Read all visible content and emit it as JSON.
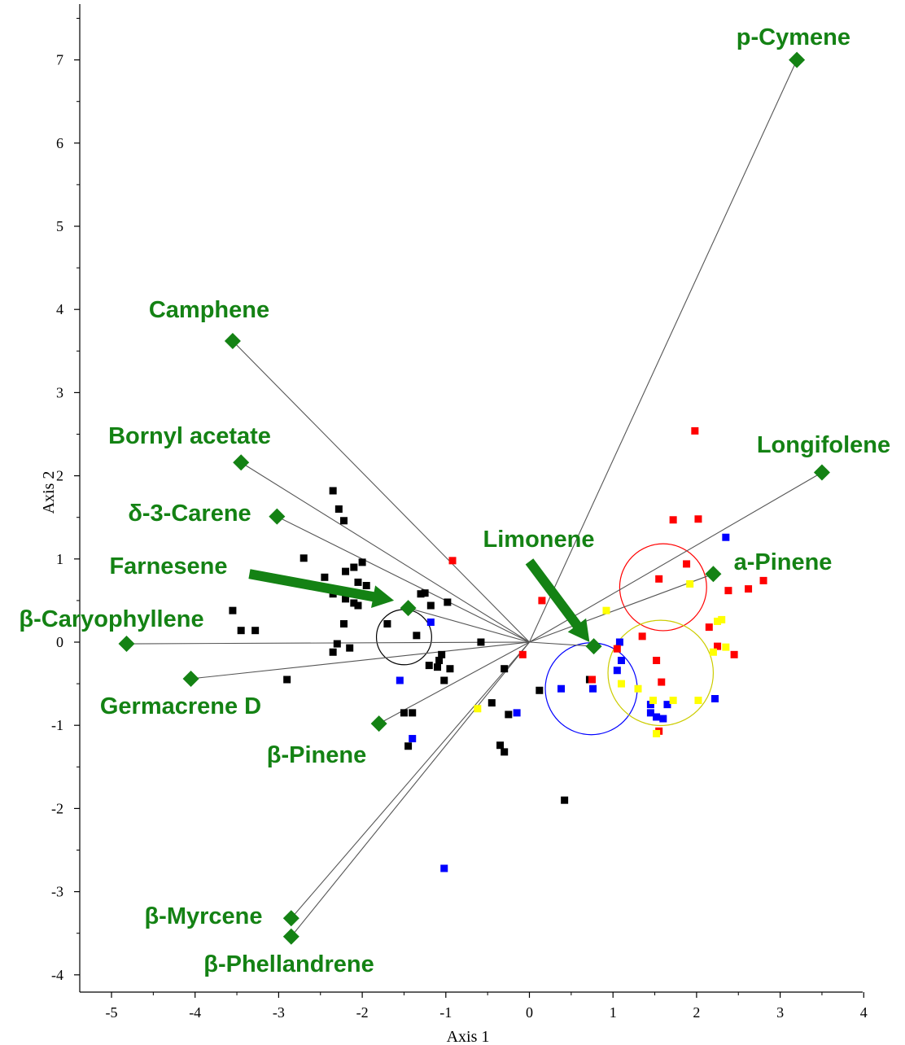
{
  "chart_data": {
    "type": "scatter",
    "title": "",
    "xlabel": "Axis 1",
    "ylabel": "Axis 2",
    "xlim": [
      -5.4,
      4.1
    ],
    "ylim": [
      -4.2,
      7.6
    ],
    "x_ticks": [
      -5,
      -4,
      -3,
      -2,
      -1,
      0,
      1,
      2,
      3,
      4
    ],
    "y_ticks": [
      -4,
      -3,
      -2,
      -1,
      0,
      1,
      2,
      3,
      4,
      5,
      6,
      7
    ],
    "grid": false,
    "colors": {
      "variables": "#148214",
      "black": "#000000",
      "blue": "#0000ff",
      "red": "#ff0000",
      "yellow": "#ffff00",
      "vector_line": "#555555"
    },
    "variables": [
      {
        "label": "p-Cymene",
        "x": 3.2,
        "y": 7.0
      },
      {
        "label": "Camphene",
        "x": -3.55,
        "y": 3.62
      },
      {
        "label": "Bornyl acetate",
        "x": -3.45,
        "y": 2.16
      },
      {
        "label": "Longifolene",
        "x": 3.5,
        "y": 2.04
      },
      {
        "label": "δ-3-Carene",
        "x": -3.02,
        "y": 1.51
      },
      {
        "label": "a-Pinene",
        "x": 2.2,
        "y": 0.82
      },
      {
        "label": "Farnesene",
        "x": -1.45,
        "y": 0.41
      },
      {
        "label": "β-Caryophyllene",
        "x": -4.82,
        "y": -0.02
      },
      {
        "label": "Limonene",
        "x": 0.77,
        "y": -0.05
      },
      {
        "label": "Germacrene D",
        "x": -4.05,
        "y": -0.44
      },
      {
        "label": "β-Pinene",
        "x": -1.8,
        "y": -0.98
      },
      {
        "label": "β-Myrcene",
        "x": -2.85,
        "y": -3.32
      },
      {
        "label": "β-Phellandrene",
        "x": -2.85,
        "y": -3.54
      }
    ],
    "arrows": [
      {
        "points_to": "Farnesene",
        "x_from": -3.35,
        "y_from": 0.82,
        "x_to": -1.62,
        "y_to": 0.5
      },
      {
        "points_to": "Limonene",
        "x_from": 0.0,
        "y_from": 0.97,
        "x_to": 0.72,
        "y_to": 0.0
      }
    ],
    "circles": [
      {
        "color": "#000000",
        "cx": -1.5,
        "cy": 0.06,
        "r": 0.33
      },
      {
        "color": "#0000ff",
        "cx": 0.74,
        "cy": -0.56,
        "r": 0.55
      },
      {
        "color": "#ff0000",
        "cx": 1.6,
        "cy": 0.66,
        "r": 0.52
      },
      {
        "color": "#cccc00",
        "cx": 1.57,
        "cy": -0.37,
        "r": 0.63
      }
    ],
    "series": [
      {
        "color": "black",
        "points": [
          [
            -2.35,
            1.82
          ],
          [
            -2.28,
            1.6
          ],
          [
            -2.22,
            1.46
          ],
          [
            -2.7,
            1.01
          ],
          [
            -2.1,
            0.9
          ],
          [
            -2.0,
            0.96
          ],
          [
            -2.45,
            0.78
          ],
          [
            -2.2,
            0.85
          ],
          [
            -2.05,
            0.72
          ],
          [
            -1.95,
            0.68
          ],
          [
            -2.35,
            0.58
          ],
          [
            -2.2,
            0.52
          ],
          [
            -2.1,
            0.47
          ],
          [
            -2.05,
            0.44
          ],
          [
            -1.3,
            0.58
          ],
          [
            -1.25,
            0.59
          ],
          [
            -1.18,
            0.44
          ],
          [
            -0.98,
            0.48
          ],
          [
            -1.7,
            0.22
          ],
          [
            -1.35,
            0.08
          ],
          [
            -3.55,
            0.38
          ],
          [
            -3.45,
            0.14
          ],
          [
            -3.28,
            0.14
          ],
          [
            -2.22,
            0.22
          ],
          [
            -2.3,
            -0.02
          ],
          [
            -2.15,
            -0.07
          ],
          [
            -2.35,
            -0.12
          ],
          [
            -2.9,
            -0.45
          ],
          [
            -1.05,
            -0.15
          ],
          [
            -1.08,
            -0.22
          ],
          [
            -1.2,
            -0.28
          ],
          [
            -1.1,
            -0.3
          ],
          [
            -0.95,
            -0.32
          ],
          [
            -1.02,
            -0.46
          ],
          [
            -0.58,
            0.0
          ],
          [
            -0.3,
            -0.32
          ],
          [
            -0.45,
            -0.73
          ],
          [
            -0.25,
            -0.87
          ],
          [
            -0.35,
            -1.24
          ],
          [
            -0.3,
            -1.32
          ],
          [
            -1.4,
            -0.85
          ],
          [
            -1.5,
            -0.85
          ],
          [
            -1.45,
            -1.25
          ],
          [
            0.12,
            -0.58
          ],
          [
            0.42,
            -1.9
          ],
          [
            0.72,
            -0.45
          ]
        ]
      },
      {
        "color": "blue",
        "points": [
          [
            -1.18,
            0.24
          ],
          [
            -1.55,
            -0.46
          ],
          [
            -1.4,
            -1.16
          ],
          [
            -1.02,
            -2.72
          ],
          [
            -0.15,
            -0.85
          ],
          [
            0.38,
            -0.56
          ],
          [
            0.76,
            -0.56
          ],
          [
            1.08,
            0.0
          ],
          [
            1.1,
            -0.22
          ],
          [
            1.05,
            -0.34
          ],
          [
            1.45,
            -0.75
          ],
          [
            1.45,
            -0.85
          ],
          [
            1.52,
            -0.9
          ],
          [
            1.6,
            -0.92
          ],
          [
            1.65,
            -0.75
          ],
          [
            2.22,
            -0.68
          ],
          [
            2.35,
            1.26
          ]
        ]
      },
      {
        "color": "red",
        "points": [
          [
            -0.92,
            0.98
          ],
          [
            0.15,
            0.5
          ],
          [
            -0.08,
            -0.15
          ],
          [
            0.75,
            -0.45
          ],
          [
            1.05,
            -0.08
          ],
          [
            1.35,
            0.07
          ],
          [
            1.52,
            -0.22
          ],
          [
            1.55,
            0.76
          ],
          [
            1.58,
            -0.48
          ],
          [
            1.55,
            -1.07
          ],
          [
            1.72,
            1.47
          ],
          [
            1.88,
            0.94
          ],
          [
            1.98,
            2.54
          ],
          [
            2.02,
            1.48
          ],
          [
            2.15,
            0.18
          ],
          [
            2.25,
            -0.05
          ],
          [
            2.38,
            0.62
          ],
          [
            2.45,
            -0.15
          ],
          [
            2.62,
            0.64
          ],
          [
            2.8,
            0.74
          ]
        ]
      },
      {
        "color": "yellow",
        "points": [
          [
            -0.62,
            -0.8
          ],
          [
            0.92,
            0.38
          ],
          [
            1.1,
            -0.5
          ],
          [
            1.3,
            -0.56
          ],
          [
            1.48,
            -0.7
          ],
          [
            1.52,
            -1.1
          ],
          [
            1.72,
            -0.7
          ],
          [
            1.92,
            0.7
          ],
          [
            2.02,
            -0.7
          ],
          [
            2.2,
            -0.12
          ],
          [
            2.25,
            0.25
          ],
          [
            2.3,
            0.27
          ],
          [
            2.35,
            -0.06
          ]
        ]
      }
    ]
  }
}
